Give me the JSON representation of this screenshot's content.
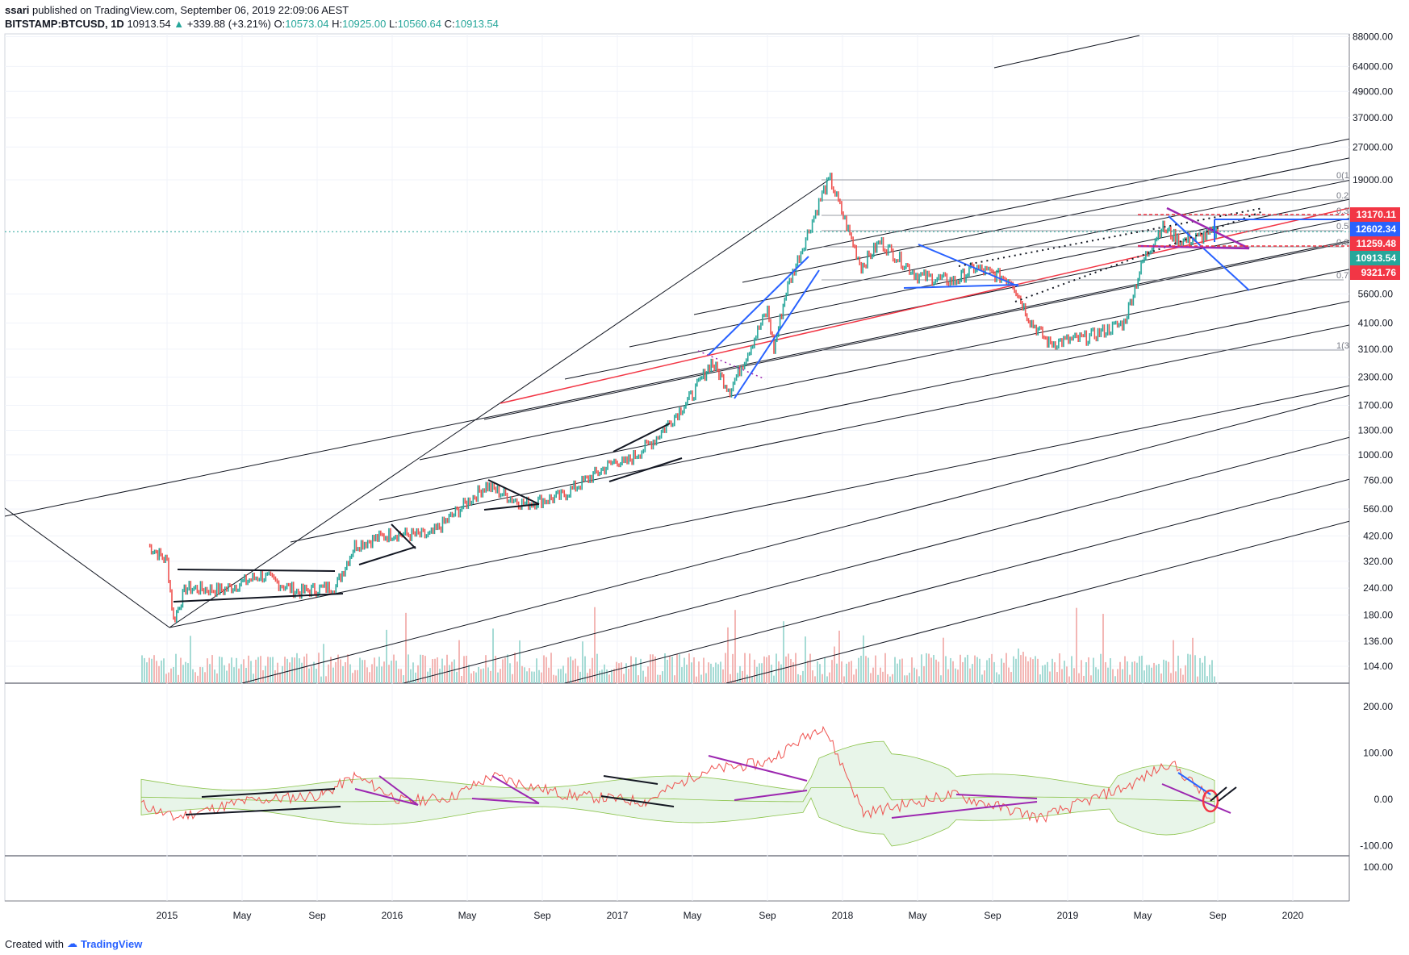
{
  "header": {
    "user": "ssari",
    "published": "published on TradingView.com, September 06, 2019 22:09:06 AEST",
    "symbol": "BITSTAMP:BTCUSD, 1D",
    "last": "10913.54",
    "change": "+339.88 (+3.21%)",
    "o_label": "O:",
    "o": "10573.04",
    "h_label": "H:",
    "h": "10925.00",
    "l_label": "L:",
    "l": "10560.64",
    "c_label": "C:",
    "c": "10913.54"
  },
  "footer": {
    "created": "Created with",
    "brand": "TradingView"
  },
  "colors": {
    "up": "#26a69a",
    "down": "#ef5350",
    "price_line": "#26a69a",
    "red": "#f23645",
    "blue": "#2962ff",
    "purple": "#9c27b0"
  },
  "chart_data": [
    {
      "type": "line",
      "name": "price",
      "y_scale": "log",
      "ylim": [
        87,
        100000
      ],
      "x_ticks": [
        "2015",
        "May",
        "Sep",
        "2016",
        "May",
        "Sep",
        "2017",
        "May",
        "Sep",
        "2018",
        "May",
        "Sep",
        "2019",
        "May",
        "Sep",
        "2020"
      ],
      "y_ticks": [
        "88000.00",
        "64000.00",
        "49000.00",
        "37000.00",
        "27000.00",
        "19000.00",
        "5600.00",
        "4100.00",
        "3100.00",
        "2300.00",
        "1700.00",
        "1300.00",
        "1000.00",
        "760.00",
        "560.00",
        "420.00",
        "320.00",
        "240.00",
        "180.00",
        "136.00",
        "104.00"
      ],
      "price_labels": [
        {
          "value": "13170.11",
          "color": "#f23645"
        },
        {
          "value": "12602.34",
          "color": "#2962ff"
        },
        {
          "value": "11259.48",
          "color": "#f23645"
        },
        {
          "value": "10913.54",
          "color": "#26a69a"
        },
        {
          "value": "9321.76",
          "color": "#f23645"
        }
      ],
      "fib_labels": [
        "0(1",
        "0.2",
        "0.3",
        "0.5",
        "0.6",
        "0.7",
        "1(3"
      ],
      "x": [
        "2014-12",
        "2015-01",
        "2015-01",
        "2015-02",
        "2015-04",
        "2015-06",
        "2015-08",
        "2015-10",
        "2015-11",
        "2016-01",
        "2016-03",
        "2016-06",
        "2016-08",
        "2016-10",
        "2017-01",
        "2017-01",
        "2017-03",
        "2017-05",
        "2017-06",
        "2017-07",
        "2017-09",
        "2017-09",
        "2017-10",
        "2017-12",
        "2017-12",
        "2018-02",
        "2018-03",
        "2018-05",
        "2018-07",
        "2018-08",
        "2018-10",
        "2018-11",
        "2018-12",
        "2019-02",
        "2019-04",
        "2019-05",
        "2019-06",
        "2019-07",
        "2019-08",
        "2019-09"
      ],
      "close": [
        380,
        320,
        170,
        240,
        235,
        275,
        230,
        245,
        380,
        430,
        420,
        720,
        590,
        640,
        950,
        900,
        1180,
        1900,
        2700,
        2000,
        4700,
        3100,
        5800,
        17000,
        19000,
        7500,
        9800,
        6800,
        6400,
        7400,
        6500,
        4200,
        3300,
        3500,
        4100,
        7900,
        11500,
        9800,
        10200,
        10913.54
      ]
    },
    {
      "type": "line",
      "name": "oscillator",
      "y_ticks": [
        "200.00",
        "100.00",
        "0.00",
        "-100.00"
      ],
      "ylim": [
        -125,
        230
      ]
    },
    {
      "type": "line",
      "name": "empty-pane",
      "y_ticks": [
        "100.00"
      ]
    }
  ]
}
